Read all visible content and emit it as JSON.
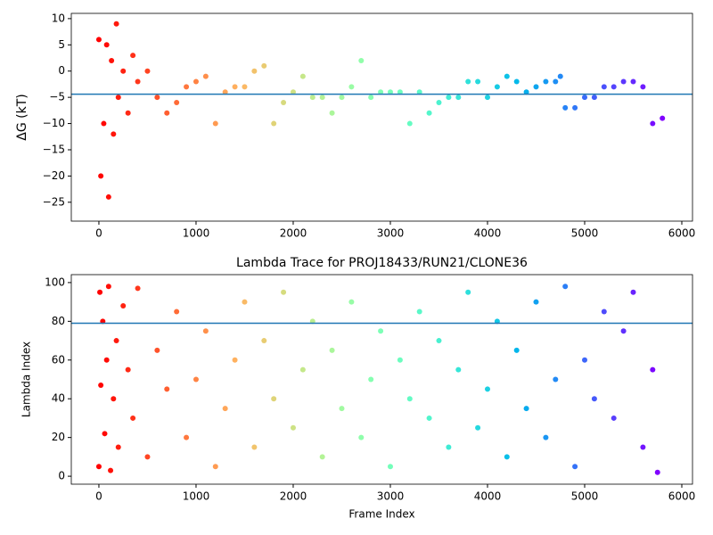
{
  "chart_data": [
    {
      "type": "scatter",
      "ylabel": "ΔG (kT)",
      "colormap": "rainbow_r",
      "hline": -4.4,
      "hline_color": "#1f77b4",
      "x": [
        0,
        20,
        50,
        80,
        100,
        130,
        150,
        180,
        200,
        250,
        300,
        350,
        400,
        500,
        600,
        700,
        800,
        900,
        1000,
        1100,
        1200,
        1300,
        1400,
        1500,
        1600,
        1700,
        1800,
        1900,
        2000,
        2100,
        2200,
        2300,
        2400,
        2500,
        2600,
        2700,
        2800,
        2900,
        3000,
        3100,
        3200,
        3300,
        3400,
        3500,
        3600,
        3700,
        3800,
        3900,
        4000,
        4100,
        4200,
        4300,
        4400,
        4500,
        4600,
        4700,
        4750,
        4800,
        4900,
        5000,
        5100,
        5200,
        5300,
        5400,
        5500,
        5600,
        5700,
        5800
      ],
      "values": [
        6,
        -20,
        -10,
        5,
        -24,
        2,
        -12,
        9,
        -5,
        0,
        -8,
        3,
        -2,
        0,
        -5,
        -8,
        -6,
        -3,
        -2,
        -1,
        -10,
        -4,
        -3,
        -3,
        0,
        1,
        -10,
        -6,
        -4,
        -1,
        -5,
        -5,
        -8,
        -5,
        -3,
        2,
        -5,
        -4,
        -4,
        -4,
        -10,
        -4,
        -8,
        -6,
        -5,
        -5,
        -2,
        -2,
        -5,
        -3,
        -1,
        -2,
        -4,
        -3,
        -2,
        -2,
        -1,
        -7,
        -7,
        -5,
        -5,
        -3,
        -3,
        -2,
        -2,
        -3,
        -10,
        -9
      ],
      "xlim": [
        -284,
        6110
      ],
      "xticks": [
        0,
        1000,
        2000,
        3000,
        4000,
        5000,
        6000
      ],
      "ylim": [
        -28.6,
        11
      ],
      "yticks": [
        {
          "value": -25,
          "label": "−25"
        },
        {
          "value": -20,
          "label": "−20"
        },
        {
          "value": -15,
          "label": "−15"
        },
        {
          "value": -10,
          "label": "−10"
        },
        {
          "value": -5,
          "label": "−5"
        },
        0,
        5,
        10
      ]
    },
    {
      "type": "scatter",
      "title": "Lambda Trace for PROJ18433/RUN21/CLONE36",
      "xlabel": "Frame Index",
      "ylabel": "Lambda Index",
      "colormap": "rainbow_r",
      "hline": 79,
      "hline_color": "#1f77b4",
      "x": [
        0,
        10,
        20,
        40,
        60,
        80,
        100,
        120,
        150,
        180,
        200,
        250,
        300,
        350,
        400,
        500,
        600,
        700,
        800,
        900,
        1000,
        1100,
        1200,
        1300,
        1400,
        1500,
        1600,
        1700,
        1800,
        1900,
        2000,
        2100,
        2200,
        2300,
        2400,
        2500,
        2600,
        2700,
        2800,
        2900,
        3000,
        3100,
        3200,
        3300,
        3400,
        3500,
        3600,
        3700,
        3800,
        3900,
        4000,
        4100,
        4200,
        4300,
        4400,
        4500,
        4600,
        4700,
        4800,
        4900,
        5000,
        5100,
        5200,
        5300,
        5400,
        5500,
        5600,
        5700,
        5750
      ],
      "values": [
        5,
        95,
        47,
        80,
        22,
        60,
        98,
        3,
        40,
        70,
        15,
        88,
        55,
        30,
        97,
        10,
        65,
        45,
        85,
        20,
        50,
        75,
        5,
        35,
        60,
        90,
        15,
        70,
        40,
        95,
        25,
        55,
        80,
        10,
        65,
        35,
        90,
        20,
        50,
        75,
        5,
        60,
        40,
        85,
        30,
        70,
        15,
        55,
        95,
        25,
        45,
        80,
        10,
        65,
        35,
        90,
        20,
        50,
        98,
        5,
        60,
        40,
        85,
        30,
        75,
        95,
        15,
        55,
        2
      ],
      "xlim": [
        -284,
        6110
      ],
      "xticks": [
        0,
        1000,
        2000,
        3000,
        4000,
        5000,
        6000
      ],
      "ylim": [
        -4.1,
        104.1
      ],
      "yticks": [
        0,
        20,
        40,
        60,
        80,
        100
      ]
    }
  ]
}
